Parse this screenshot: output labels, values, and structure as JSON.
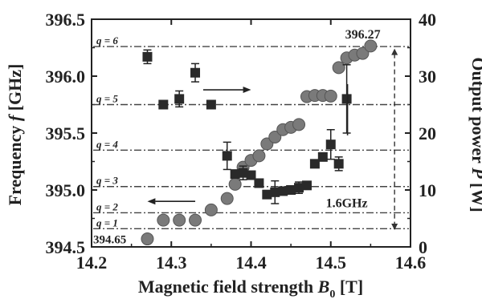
{
  "chart_data": {
    "type": "scatter",
    "x": {
      "label_main": "Magnetic field strength ",
      "label_sym": "B",
      "label_sub": "0",
      "label_unit": " [T]",
      "lim": [
        14.2,
        14.6
      ],
      "ticks": [
        "14.2",
        "14.3",
        "14.4",
        "14.5",
        "14.6"
      ]
    },
    "y_left": {
      "label_main": "Frequency ",
      "label_sym": "f",
      "label_unit": " [GHz]",
      "lim": [
        394.5,
        396.5
      ],
      "ticks": [
        "394.5",
        "395.0",
        "395.5",
        "396.0",
        "396.5"
      ]
    },
    "y_right": {
      "label_main": "Output power ",
      "label_sym": "P",
      "label_unit": " [W]",
      "lim": [
        0,
        40
      ],
      "ticks": [
        "0",
        "10",
        "20",
        "30",
        "40"
      ]
    },
    "frequency_series": {
      "marker": "square",
      "points": [
        {
          "x": 14.27,
          "y": 396.17,
          "err": 0.06
        },
        {
          "x": 14.29,
          "y": 395.75
        },
        {
          "x": 14.31,
          "y": 395.8,
          "err": 0.07
        },
        {
          "x": 14.33,
          "y": 396.03,
          "err": 0.08
        },
        {
          "x": 14.35,
          "y": 395.75
        },
        {
          "x": 14.37,
          "y": 395.3,
          "err": 0.12
        },
        {
          "x": 14.38,
          "y": 395.14
        },
        {
          "x": 14.39,
          "y": 395.15,
          "err": 0.06
        },
        {
          "x": 14.4,
          "y": 395.13
        },
        {
          "x": 14.41,
          "y": 395.06
        },
        {
          "x": 14.42,
          "y": 394.96
        },
        {
          "x": 14.43,
          "y": 394.98,
          "err": 0.1
        },
        {
          "x": 14.44,
          "y": 394.99
        },
        {
          "x": 14.45,
          "y": 395.0
        },
        {
          "x": 14.46,
          "y": 395.02,
          "err": 0.05
        },
        {
          "x": 14.47,
          "y": 395.04
        },
        {
          "x": 14.48,
          "y": 395.23
        },
        {
          "x": 14.49,
          "y": 395.29
        },
        {
          "x": 14.5,
          "y": 395.4,
          "err": 0.13
        },
        {
          "x": 14.51,
          "y": 395.23,
          "err": 0.06
        },
        {
          "x": 14.52,
          "y": 395.8,
          "err": 0.3
        }
      ]
    },
    "power_series": {
      "marker": "circle",
      "points": [
        {
          "x": 14.27,
          "y": 1.4
        },
        {
          "x": 14.29,
          "y": 4.7
        },
        {
          "x": 14.31,
          "y": 4.7
        },
        {
          "x": 14.33,
          "y": 4.7
        },
        {
          "x": 14.35,
          "y": 6.5
        },
        {
          "x": 14.37,
          "y": 8.5
        },
        {
          "x": 14.38,
          "y": 11.0
        },
        {
          "x": 14.39,
          "y": 14.0
        },
        {
          "x": 14.4,
          "y": 15.2
        },
        {
          "x": 14.41,
          "y": 16.0
        },
        {
          "x": 14.42,
          "y": 18.1
        },
        {
          "x": 14.43,
          "y": 19.3
        },
        {
          "x": 14.44,
          "y": 20.6
        },
        {
          "x": 14.45,
          "y": 21.0
        },
        {
          "x": 14.46,
          "y": 21.5
        },
        {
          "x": 14.47,
          "y": 26.4
        },
        {
          "x": 14.48,
          "y": 26.6
        },
        {
          "x": 14.49,
          "y": 26.6
        },
        {
          "x": 14.5,
          "y": 26.5
        },
        {
          "x": 14.51,
          "y": 31.5
        },
        {
          "x": 14.52,
          "y": 33.2
        },
        {
          "x": 14.53,
          "y": 33.7
        },
        {
          "x": 14.54,
          "y": 34.0
        },
        {
          "x": 14.55,
          "y": 35.3
        }
      ]
    },
    "q_levels": [
      {
        "label": "q = 1",
        "freq": 394.66
      },
      {
        "label": "q = 2",
        "freq": 394.8
      },
      {
        "label": "q = 3",
        "freq": 395.03
      },
      {
        "label": "q = 4",
        "freq": 395.35
      },
      {
        "label": "q = 5",
        "freq": 395.75
      },
      {
        "label": "q = 6",
        "freq": 396.26
      }
    ],
    "annotations": {
      "top_value": "396.27",
      "bottom_value": "394.65",
      "span": "1.6GHz",
      "span_x": 14.58
    },
    "grid": false,
    "legend": "none"
  }
}
